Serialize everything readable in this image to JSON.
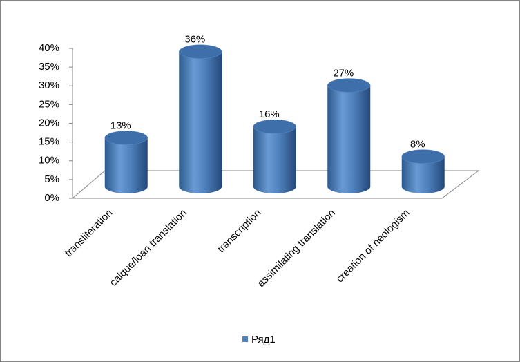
{
  "chart_data": {
    "type": "bar",
    "categories": [
      "transliteration",
      "calque/loan translation",
      "transcription",
      "assimilating translation",
      "creation of neologism"
    ],
    "series": [
      {
        "name": "Ряд1",
        "color": "#4f81bd",
        "values": [
          13,
          36,
          16,
          27,
          8
        ],
        "value_labels": [
          "13%",
          "36%",
          "16%",
          "27%",
          "8%"
        ]
      }
    ],
    "ylim": [
      0,
      40
    ],
    "yticks": [
      {
        "value": 0,
        "label": "0%"
      },
      {
        "value": 5,
        "label": "5%"
      },
      {
        "value": 10,
        "label": "10%"
      },
      {
        "value": 15,
        "label": "15%"
      },
      {
        "value": 20,
        "label": "20%"
      },
      {
        "value": 25,
        "label": "25%"
      },
      {
        "value": 30,
        "label": "30%"
      },
      {
        "value": 35,
        "label": "35%"
      },
      {
        "value": 40,
        "label": "40%"
      }
    ],
    "legend": "bottom"
  }
}
